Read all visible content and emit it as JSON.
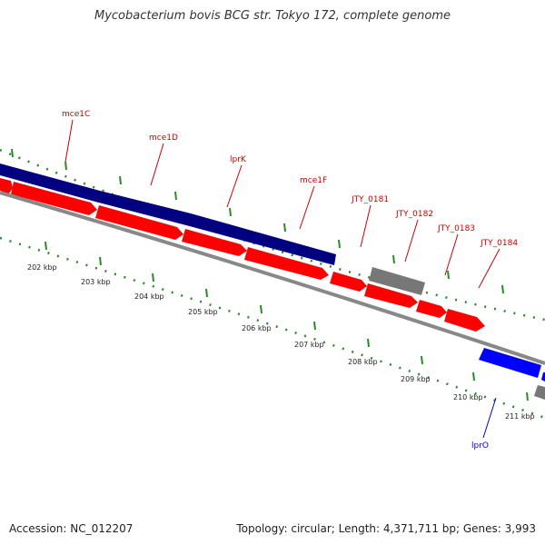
{
  "title": "Mycobacterium bovis BCG str. Tokyo 172, complete genome",
  "footer": {
    "accession": "Accession: NC_012207",
    "topology": "Topology: circular; Length: 4,371,711 bp; Genes: 3,993"
  },
  "colors": {
    "forward_gene": "#ff0000",
    "operon_band": "#000080",
    "reverse_gene": "#0000ff",
    "pseudo_gene": "#777777",
    "genome_line": "#888888",
    "tick": "#2a8a2a",
    "gene_label": "#cc0000",
    "reverse_label": "#0000cc"
  },
  "gene_labels": [
    {
      "name": "mce1C",
      "strand": "forward"
    },
    {
      "name": "mce1D",
      "strand": "forward"
    },
    {
      "name": "lprK",
      "strand": "forward"
    },
    {
      "name": "mce1F",
      "strand": "forward"
    },
    {
      "name": "JTY_0181",
      "strand": "forward"
    },
    {
      "name": "JTY_0182",
      "strand": "forward"
    },
    {
      "name": "JTY_0183",
      "strand": "forward"
    },
    {
      "name": "JTY_0184",
      "strand": "forward"
    },
    {
      "name": "lprO",
      "strand": "reverse"
    }
  ],
  "kbp_labels": [
    "202 kbp",
    "203 kbp",
    "204 kbp",
    "205 kbp",
    "206 kbp",
    "207 kbp",
    "208 kbp",
    "209 kbp",
    "210 kbp",
    "211 kbp"
  ]
}
